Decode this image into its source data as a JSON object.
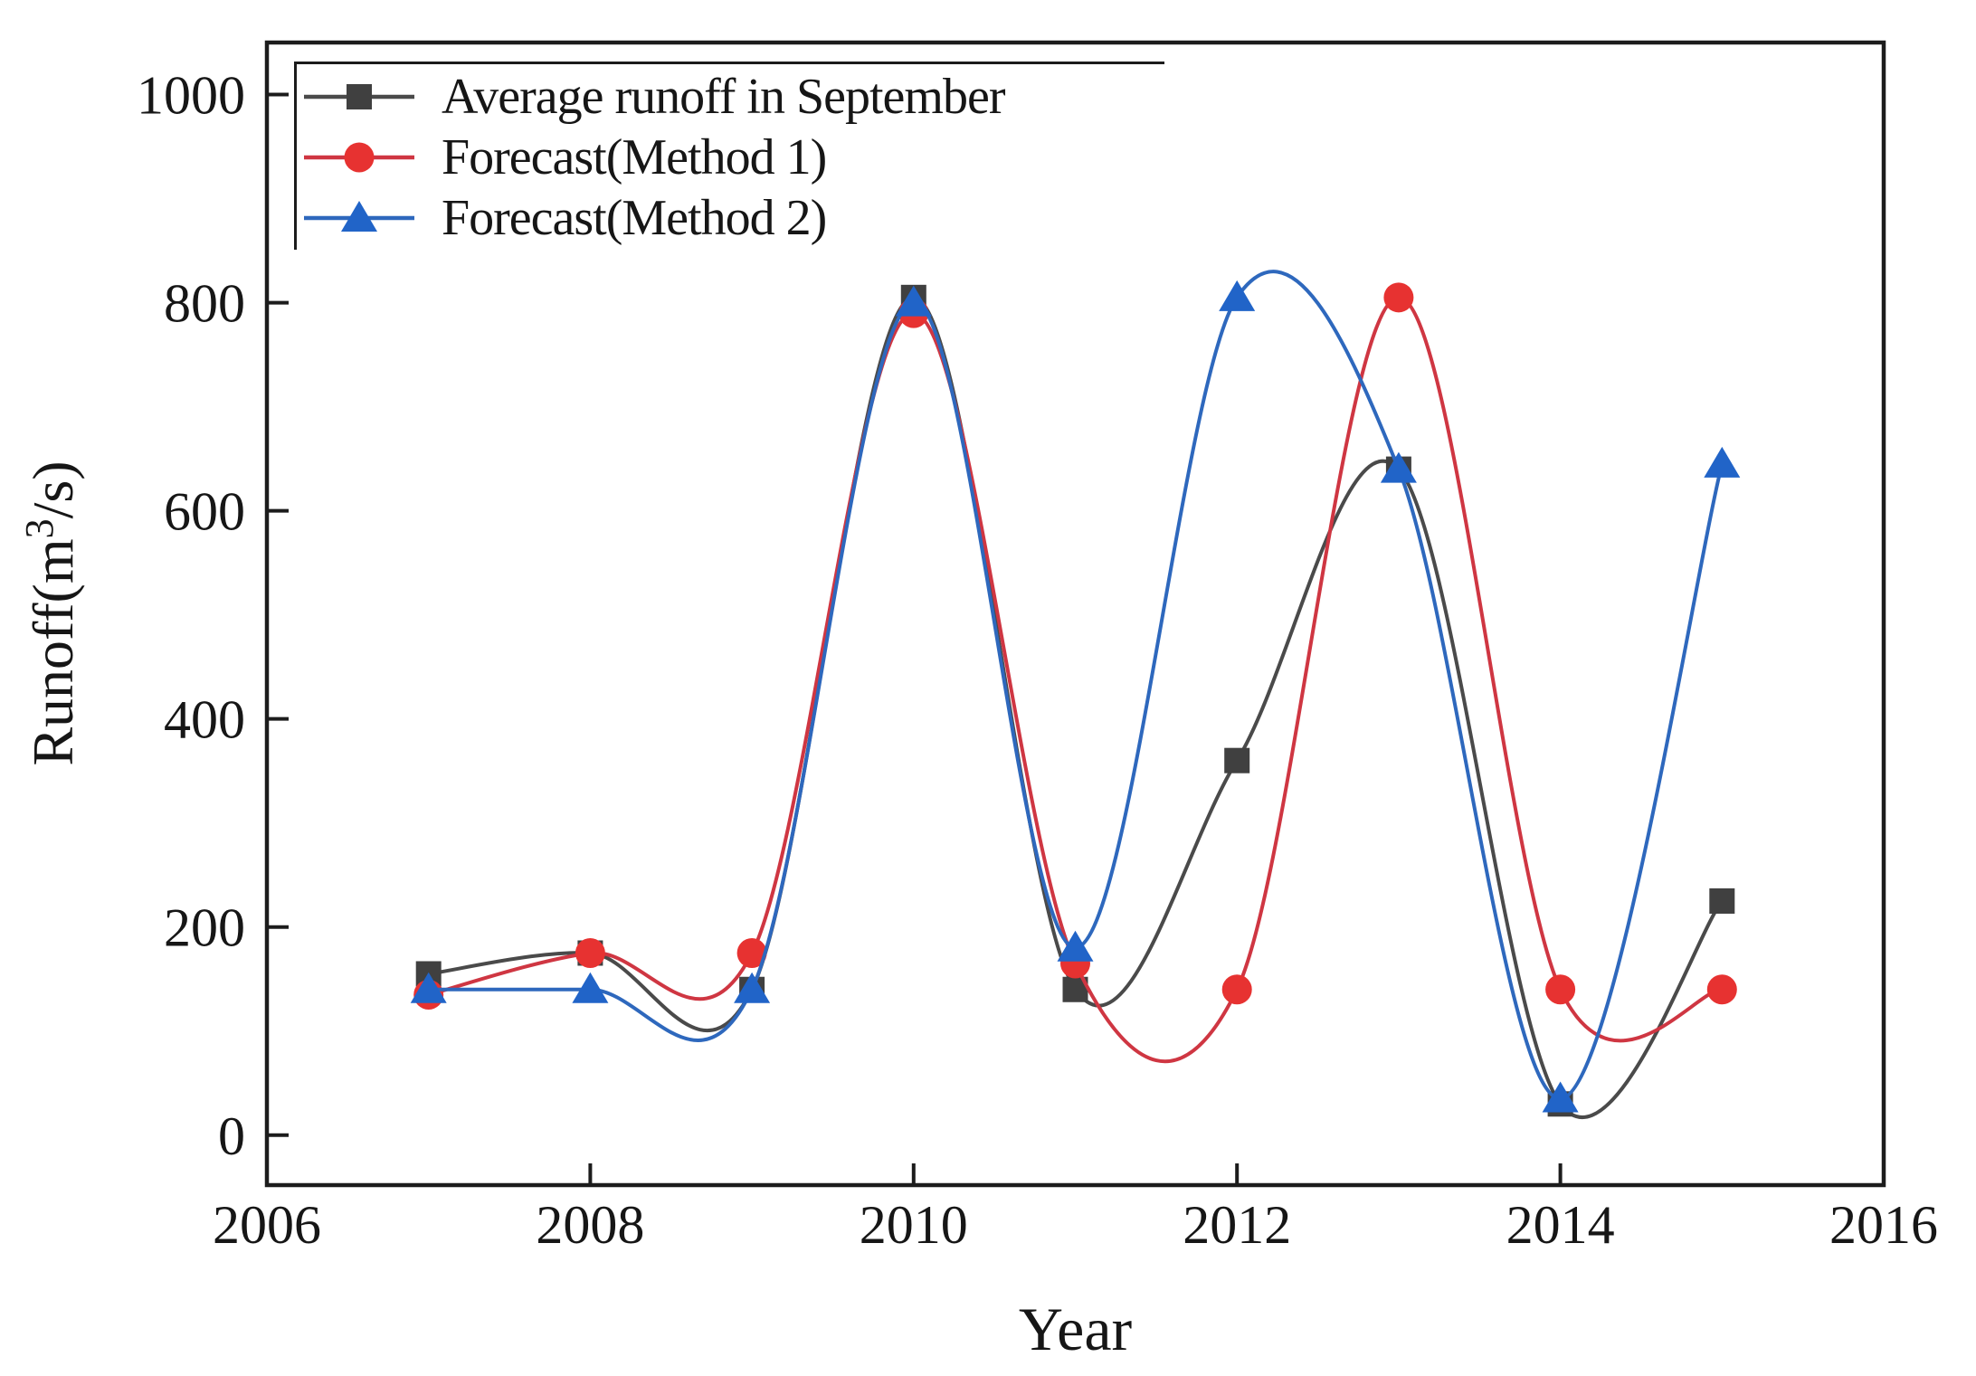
{
  "figure": {
    "background": "#ffffff",
    "axis_color": "#1c1c1c",
    "text_color": "#161616"
  },
  "chart_data": {
    "type": "line",
    "title": "",
    "xlabel": "Year",
    "ylabel": "Runoff(m³/s)",
    "ylabel_parts": {
      "prefix": "Runoff(m",
      "superscript": "3",
      "suffix": "/s)"
    },
    "x": [
      2007,
      2008,
      2009,
      2010,
      2011,
      2012,
      2013,
      2014,
      2015
    ],
    "x_ticks": [
      2006,
      2008,
      2010,
      2012,
      2014,
      2016
    ],
    "y_ticks": [
      0,
      200,
      400,
      600,
      800,
      1000
    ],
    "xlim": [
      2006,
      2016
    ],
    "ylim": [
      -48,
      1050
    ],
    "grid": false,
    "legend_position": "top-left",
    "smoothing": "spline",
    "series": [
      {
        "name": "Average runoff in September",
        "marker": "square",
        "line_color": "#4a4a4a",
        "marker_color": "#404040",
        "values": [
          155,
          175,
          140,
          805,
          140,
          360,
          640,
          30,
          225
        ]
      },
      {
        "name": "Forecast(Method 1)",
        "marker": "circle",
        "line_color": "#cf3642",
        "marker_color": "#e73231",
        "values": [
          135,
          175,
          175,
          790,
          165,
          140,
          805,
          140,
          140
        ]
      },
      {
        "name": "Forecast(Method 2)",
        "marker": "triangle",
        "line_color": "#2e68bd",
        "marker_color": "#2164c8",
        "values": [
          140,
          140,
          140,
          800,
          180,
          805,
          640,
          35,
          645
        ]
      }
    ]
  }
}
